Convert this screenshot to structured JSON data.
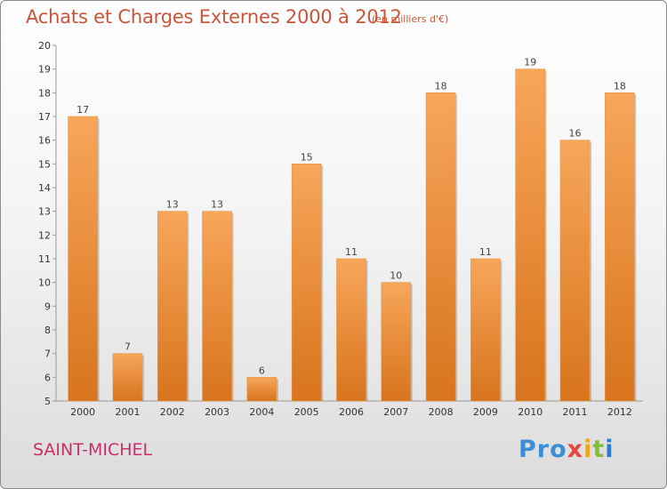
{
  "header": {
    "title": "Achats et Charges Externes 2000 à 2012",
    "subtitle": "(en milliers d'€)"
  },
  "footer": {
    "place": "SAINT-MICHEL",
    "logo": [
      "Pro",
      "x",
      "i",
      "t",
      "i"
    ]
  },
  "colors": {
    "bar_top": "#f7a65a",
    "bar_bottom": "#d8741c",
    "title": "#c8553a",
    "place": "#c8306a"
  },
  "chart_data": {
    "type": "bar",
    "title": "Achats et Charges Externes 2000 à 2012",
    "subtitle": "(en milliers d'€)",
    "xlabel": "",
    "ylabel": "",
    "categories": [
      "2000",
      "2001",
      "2002",
      "2003",
      "2004",
      "2005",
      "2006",
      "2007",
      "2008",
      "2009",
      "2010",
      "2011",
      "2012"
    ],
    "values": [
      17,
      7,
      13,
      13,
      6,
      15,
      11,
      10,
      18,
      11,
      19,
      16,
      18
    ],
    "data_labels": [
      "17",
      "7",
      "13",
      "13",
      "6",
      "15",
      "11",
      "10",
      "18",
      "11",
      "19",
      "16",
      "18"
    ],
    "ylim": [
      5,
      20
    ],
    "yticks": [
      5,
      6,
      7,
      8,
      9,
      10,
      11,
      12,
      13,
      14,
      15,
      16,
      17,
      18,
      19,
      20
    ],
    "grid": false,
    "legend": "none"
  }
}
